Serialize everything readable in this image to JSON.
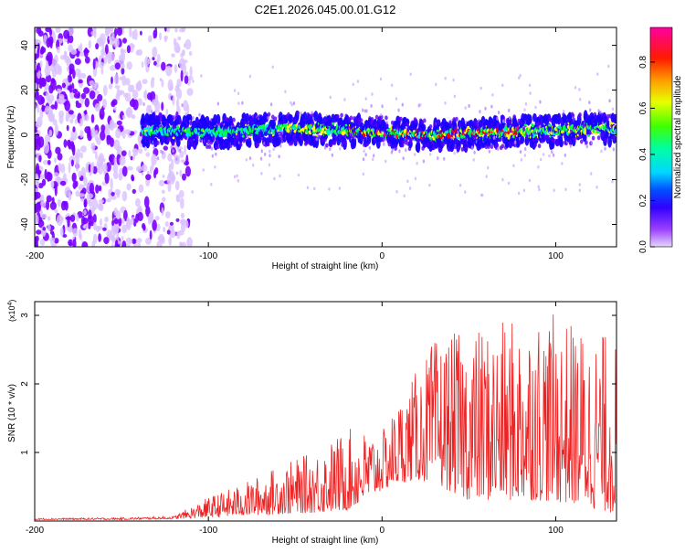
{
  "chart_data": [
    {
      "type": "heatmap",
      "title": "C2E1.2026.045.00.01.G12",
      "xlabel": "Height of straight line (km)",
      "ylabel": "Frequency (Hz)",
      "xlim": [
        -200,
        135
      ],
      "ylim": [
        -50,
        48
      ],
      "xticks": [
        -200,
        -100,
        0,
        100
      ],
      "yticks": [
        40,
        20,
        0,
        -20,
        -40
      ],
      "colorbar": {
        "label": "Normalized spectral amplitude",
        "range": [
          0,
          0.95
        ],
        "ticks": [
          0.0,
          0.2,
          0.4,
          0.6,
          0.8
        ],
        "colormap": [
          "#e0c8ff",
          "#7a00ff",
          "#0000ff",
          "#00e5ff",
          "#00ff40",
          "#ffff00",
          "#ff8000",
          "#ff0000",
          "#ff00a0"
        ]
      },
      "features": {
        "noise_region_x": [
          -200,
          -110
        ],
        "signal_start_x": -138,
        "ridge_frequency_at_x": [
          [
            -138,
            2
          ],
          [
            -100,
            1
          ],
          [
            -50,
            3
          ],
          [
            0,
            1
          ],
          [
            30,
            0
          ],
          [
            60,
            1
          ],
          [
            100,
            2
          ],
          [
            135,
            3
          ]
        ],
        "peak_amplitude_region_x": [
          -20,
          80
        ]
      }
    },
    {
      "type": "line",
      "xlabel": "Height of straight line (km)",
      "ylabel": "SNR (10 * v/v)",
      "y_multiplier": "(x10^4)",
      "xlim": [
        -200,
        135
      ],
      "ylim": [
        0,
        3.2
      ],
      "xticks": [
        -200,
        -100,
        0,
        100
      ],
      "yticks": [
        1,
        2,
        3
      ],
      "series": [
        {
          "name": "SNR",
          "color": "#ee2222",
          "envelope_x": [
            -200,
            -150,
            -120,
            -100,
            -80,
            -60,
            -40,
            -20,
            0,
            10,
            20,
            30,
            50,
            70,
            90,
            110,
            135
          ],
          "envelope_lower": [
            0.02,
            0.02,
            0.03,
            0.05,
            0.08,
            0.1,
            0.12,
            0.15,
            0.45,
            0.55,
            0.6,
            0.55,
            0.3,
            0.3,
            0.3,
            0.25,
            0.1
          ],
          "envelope_upper": [
            0.04,
            0.05,
            0.07,
            0.35,
            0.55,
            0.8,
            1.0,
            1.35,
            1.3,
            1.8,
            2.2,
            2.65,
            2.8,
            2.9,
            3.1,
            2.9,
            2.7
          ]
        }
      ]
    }
  ],
  "y_multiplier_parts": {
    "base": "(x10",
    "exponent": "4",
    "close": ")"
  }
}
